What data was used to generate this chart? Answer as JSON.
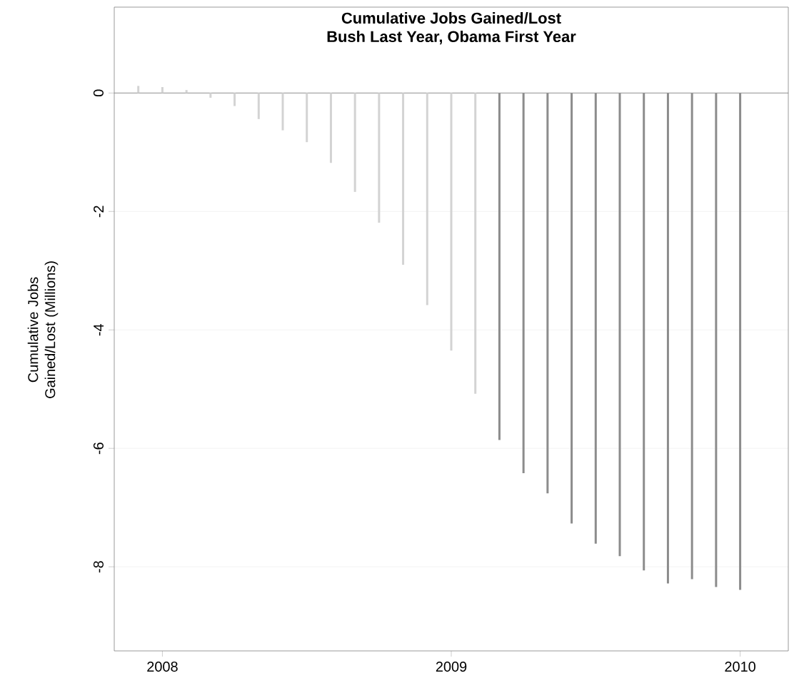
{
  "chart_data": {
    "type": "bar",
    "title": "Cumulative Jobs Gained/Lost",
    "subtitle": "Bush Last Year, Obama First Year",
    "ylabel": "Cumulative Jobs Gained/Lost (Millions)",
    "x": [
      "2007-12",
      "2008-01",
      "2008-02",
      "2008-03",
      "2008-04",
      "2008-05",
      "2008-06",
      "2008-07",
      "2008-08",
      "2008-09",
      "2008-10",
      "2008-11",
      "2008-12",
      "2009-01",
      "2009-02",
      "2009-03",
      "2009-04",
      "2009-05",
      "2009-06",
      "2009-07",
      "2009-08",
      "2009-09",
      "2009-10",
      "2009-11",
      "2009-12",
      "2010-01"
    ],
    "values": [
      0.12,
      0.1,
      0.05,
      -0.08,
      -0.22,
      -0.44,
      -0.63,
      -0.83,
      -1.18,
      -1.67,
      -2.19,
      -2.9,
      -3.58,
      -4.35,
      -5.08,
      -5.86,
      -6.42,
      -6.76,
      -7.27,
      -7.61,
      -7.82,
      -8.06,
      -8.28,
      -8.21,
      -8.34,
      -8.39
    ],
    "colors": [
      "#d3d3d3",
      "#d3d3d3",
      "#d3d3d3",
      "#d3d3d3",
      "#d3d3d3",
      "#d3d3d3",
      "#d3d3d3",
      "#d3d3d3",
      "#d3d3d3",
      "#d3d3d3",
      "#d3d3d3",
      "#d3d3d3",
      "#d3d3d3",
      "#d3d3d3",
      "#d3d3d3",
      "#8c8c8c",
      "#8c8c8c",
      "#8c8c8c",
      "#8c8c8c",
      "#8c8c8c",
      "#8c8c8c",
      "#8c8c8c",
      "#8c8c8c",
      "#8c8c8c",
      "#8c8c8c",
      "#8c8c8c"
    ],
    "xlim": [
      "2007-11",
      "2010-03"
    ],
    "xticks": [
      "2008",
      "2009",
      "2010"
    ],
    "ylim": [
      -9.42,
      1.45
    ],
    "yticks": [
      0,
      -2,
      -4,
      -6,
      -8
    ],
    "ref_lines": [
      {
        "axis": "y",
        "value": 0,
        "color": "#7a7a7a"
      }
    ],
    "grid": "y"
  }
}
